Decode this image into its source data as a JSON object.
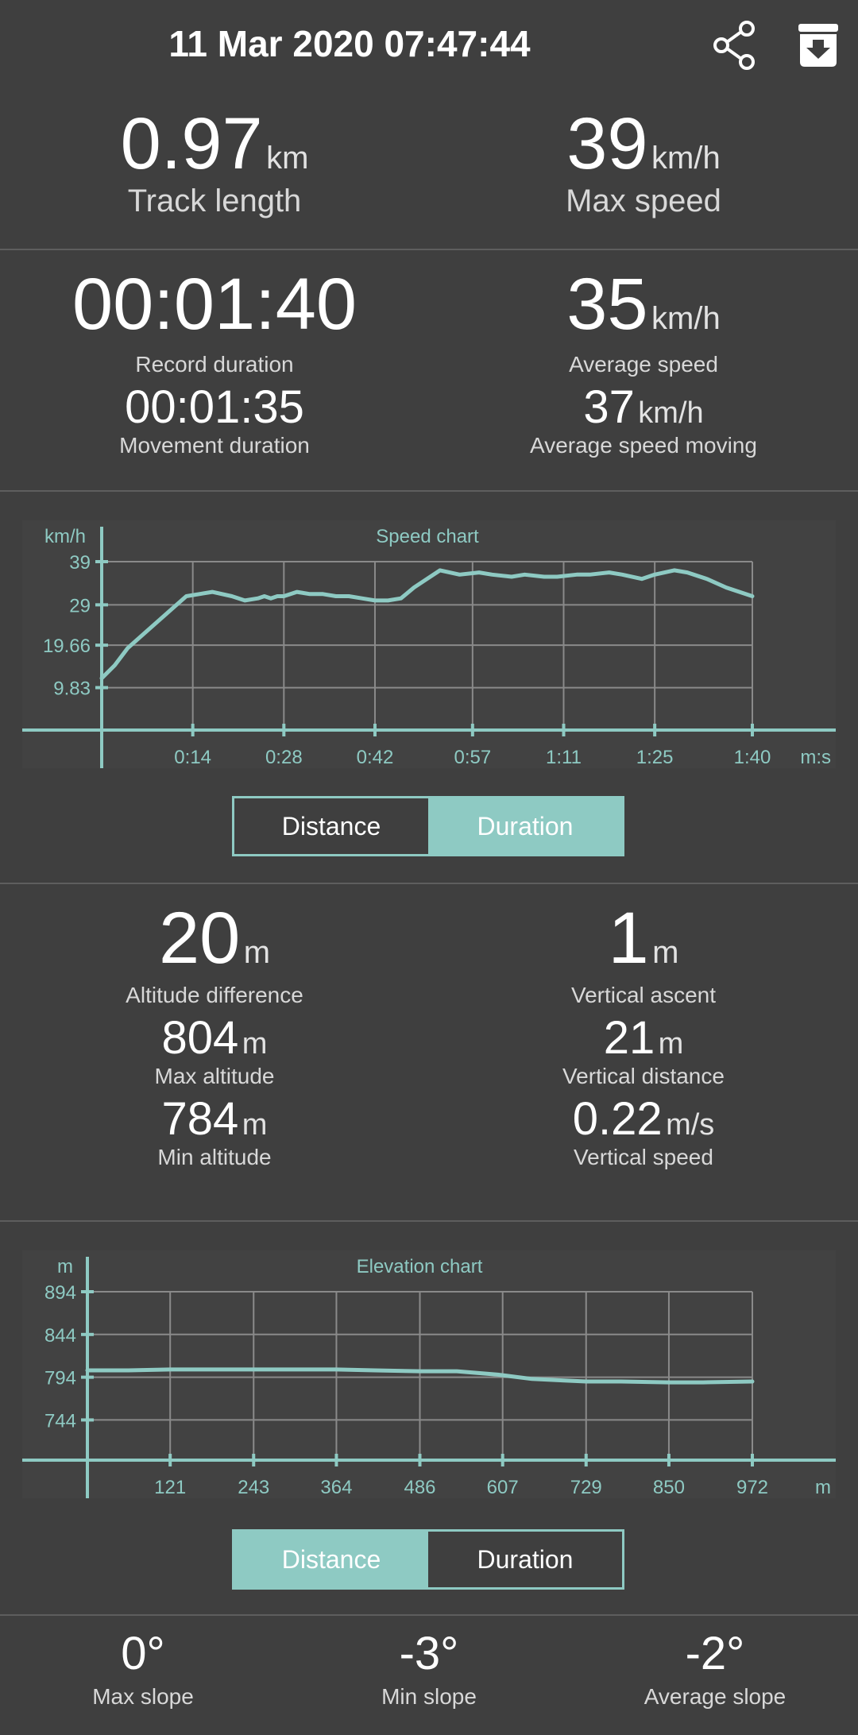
{
  "header": {
    "title": "11 Mar 2020 07:47:44",
    "share_icon": "share-icon",
    "archive_icon": "archive-download-icon"
  },
  "summary": {
    "track_length": {
      "value": "0.97",
      "unit": "km",
      "label": "Track length"
    },
    "max_speed": {
      "value": "39",
      "unit": "km/h",
      "label": "Max speed"
    }
  },
  "timing": {
    "record_duration": {
      "value": "00:01:40",
      "label": "Record duration"
    },
    "movement_duration": {
      "value": "00:01:35",
      "label": "Movement duration"
    },
    "average_speed": {
      "value": "35",
      "unit": "km/h",
      "label": "Average speed"
    },
    "average_speed_moving": {
      "value": "37",
      "unit": "km/h",
      "label": "Average speed moving"
    }
  },
  "speed_chart_toggle": {
    "distance_label": "Distance",
    "duration_label": "Duration",
    "selected": "Duration"
  },
  "altitude": {
    "altitude_difference": {
      "value": "20",
      "unit": "m",
      "label": "Altitude difference"
    },
    "vertical_ascent": {
      "value": "1",
      "unit": "m",
      "label": "Vertical ascent"
    },
    "max_altitude": {
      "value": "804",
      "unit": "m",
      "label": "Max altitude"
    },
    "vertical_distance": {
      "value": "21",
      "unit": "m",
      "label": "Vertical distance"
    },
    "min_altitude": {
      "value": "784",
      "unit": "m",
      "label": "Min altitude"
    },
    "vertical_speed": {
      "value": "0.22",
      "unit": "m/s",
      "label": "Vertical speed"
    }
  },
  "elevation_chart_toggle": {
    "distance_label": "Distance",
    "duration_label": "Duration",
    "selected": "Distance"
  },
  "slope": {
    "max_slope": {
      "value": "0°",
      "label": "Max slope"
    },
    "min_slope": {
      "value": "-3°",
      "label": "Min slope"
    },
    "average_slope": {
      "value": "-2°",
      "label": "Average slope"
    }
  },
  "colors": {
    "background": "#3f3f3f",
    "accent": "#8ecac3",
    "grid": "#8a8a8a",
    "divider": "#5e5e5e"
  },
  "chart_data": [
    {
      "type": "line",
      "title": "Speed chart",
      "ylabel": "km/h",
      "xlabel": "m:s",
      "yticks": [
        "39",
        "29",
        "19.66",
        "9.83"
      ],
      "ytick_values": [
        39,
        29,
        19.66,
        9.83
      ],
      "xticks": [
        "0:14",
        "0:28",
        "0:42",
        "0:57",
        "1:11",
        "1:25",
        "1:40"
      ],
      "xtick_values": [
        14,
        28,
        42,
        57,
        71,
        85,
        100
      ],
      "xlim": [
        0,
        100
      ],
      "ylim": [
        0,
        39
      ],
      "grid": true,
      "x": [
        0,
        2,
        4,
        7,
        10,
        13,
        15,
        17,
        20,
        22,
        24,
        25,
        26,
        27,
        28,
        30,
        32,
        34,
        36,
        38,
        40,
        42,
        44,
        46,
        48,
        50,
        52,
        55,
        58,
        60,
        63,
        65,
        68,
        70,
        73,
        75,
        78,
        80,
        83,
        85,
        88,
        90,
        93,
        96,
        100
      ],
      "y": [
        12,
        15,
        19,
        23,
        27,
        31,
        31.5,
        32,
        31,
        30,
        30.5,
        31,
        30.5,
        31,
        31,
        32,
        31.5,
        31.5,
        31,
        31,
        30.5,
        30,
        30,
        30.5,
        33,
        35,
        37,
        36,
        36.5,
        36,
        35.5,
        36,
        35.5,
        35.5,
        36,
        36,
        36.5,
        36,
        35,
        36,
        37,
        36.5,
        35,
        33,
        31
      ]
    },
    {
      "type": "line",
      "title": "Elevation chart",
      "ylabel": "m",
      "xlabel": "m",
      "yticks": [
        "894",
        "844",
        "794",
        "744"
      ],
      "ytick_values": [
        894,
        844,
        794,
        744
      ],
      "xticks": [
        "121",
        "243",
        "364",
        "486",
        "607",
        "729",
        "850",
        "972"
      ],
      "xtick_values": [
        121,
        243,
        364,
        486,
        607,
        729,
        850,
        972
      ],
      "xlim": [
        0,
        972
      ],
      "ylim": [
        697,
        894
      ],
      "grid": true,
      "x": [
        0,
        60,
        121,
        180,
        243,
        300,
        364,
        420,
        486,
        540,
        600,
        650,
        700,
        729,
        780,
        850,
        900,
        972
      ],
      "y": [
        802,
        802,
        803,
        803,
        803,
        803,
        803,
        802,
        801,
        801,
        797,
        792,
        790,
        789,
        789,
        788,
        788,
        789
      ]
    }
  ]
}
